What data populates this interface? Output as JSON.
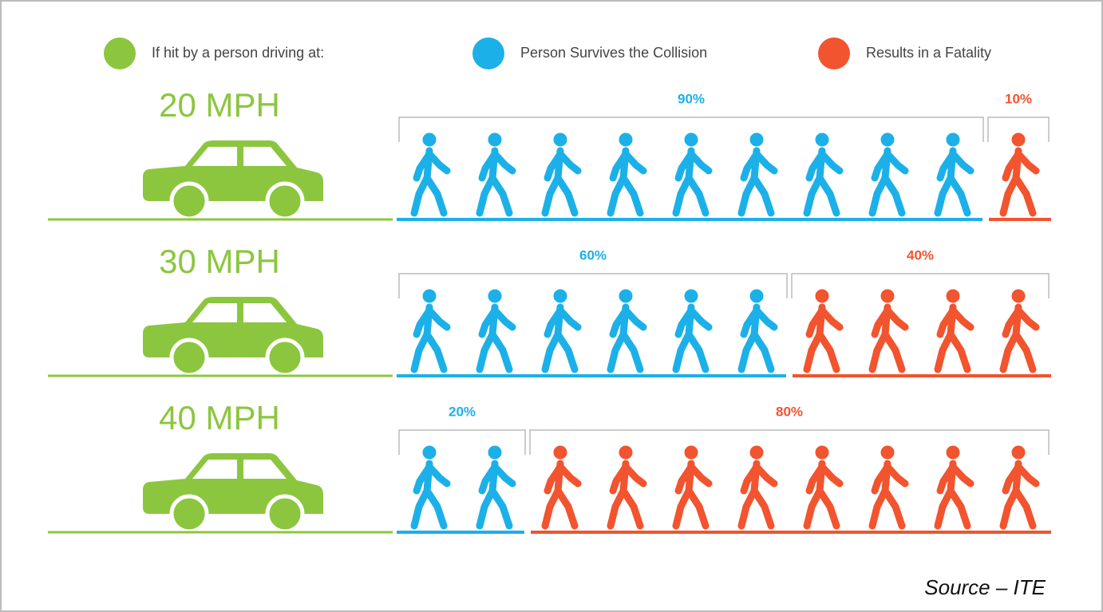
{
  "chart_data": {
    "type": "pictogram",
    "category_legend": {
      "label": "If hit by a person driving at:",
      "color": "#8cc63f"
    },
    "categories": [
      "20 MPH",
      "30 MPH",
      "40 MPH"
    ],
    "series": [
      {
        "name": "Person Survives the Collision",
        "color": "#1cb0e8",
        "values": [
          90,
          60,
          20
        ],
        "value_labels": [
          "90%",
          "60%",
          "20%"
        ]
      },
      {
        "name": "Results in a Fatality",
        "color": "#f1542e",
        "values": [
          10,
          40,
          80
        ],
        "value_labels": [
          "10%",
          "40%",
          "80%"
        ]
      }
    ],
    "xlim": [
      0,
      100
    ],
    "source": "Source – ITE"
  }
}
